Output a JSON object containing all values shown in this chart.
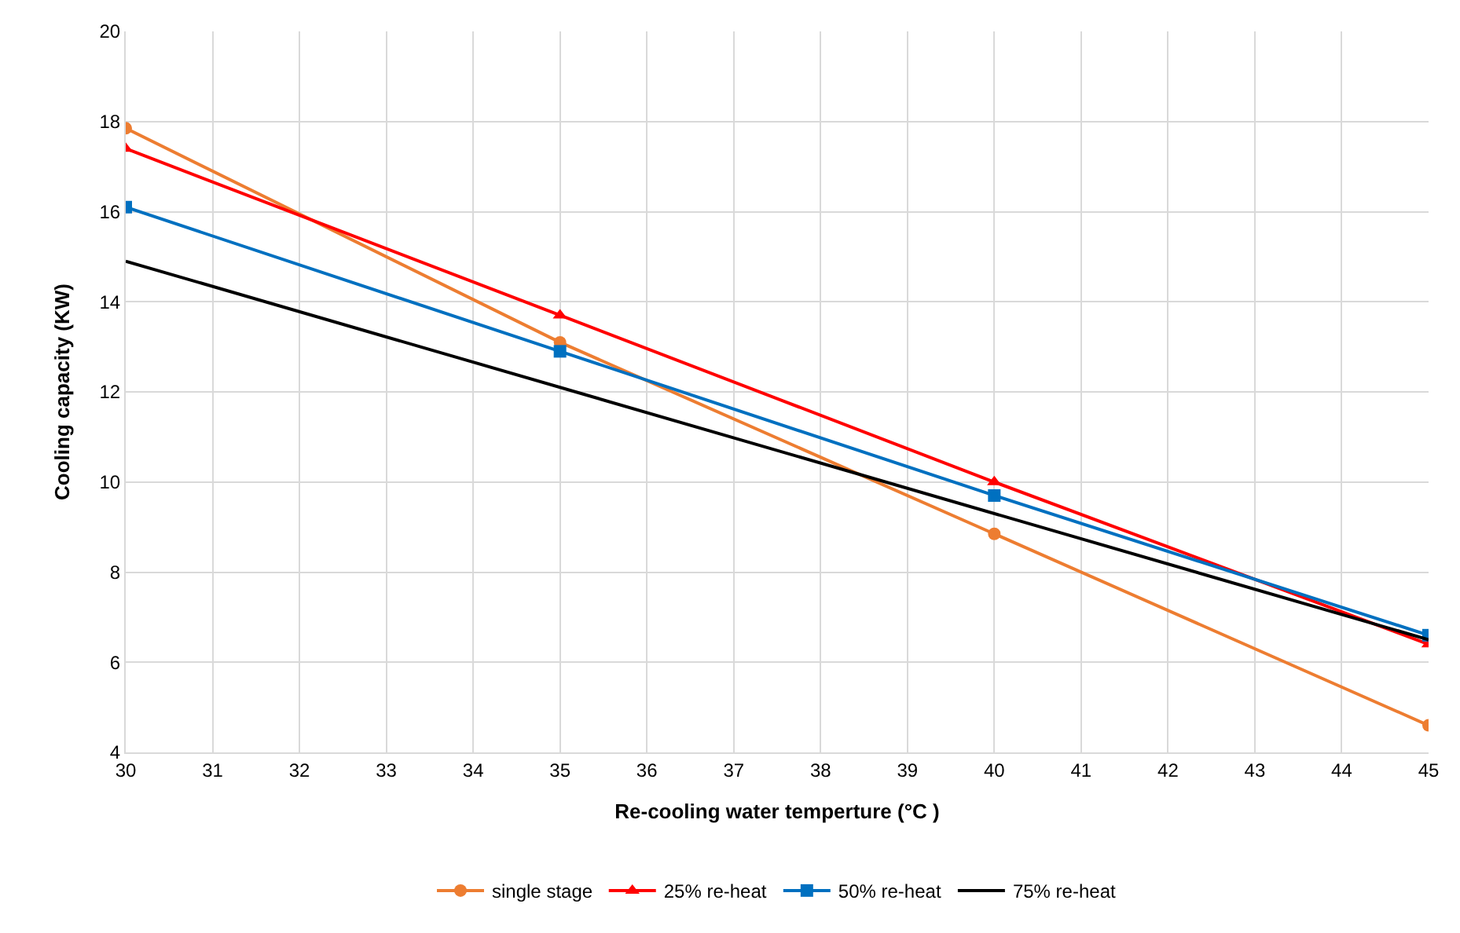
{
  "chart_data": {
    "type": "line",
    "xlabel": "Re-cooling water temperture (°C )",
    "ylabel": "Cooling capacity (KW)",
    "x": [
      30,
      35,
      40,
      45
    ],
    "series": [
      {
        "name": "single stage",
        "color": "#ed7d31",
        "marker": "circle",
        "values": [
          17.85,
          13.1,
          8.85,
          4.6
        ]
      },
      {
        "name": "25% re-heat",
        "color": "#ff0000",
        "marker": "triangle",
        "values": [
          17.4,
          13.7,
          10.0,
          6.4
        ]
      },
      {
        "name": "50% re-heat",
        "color": "#0070c0",
        "marker": "square",
        "values": [
          16.1,
          12.9,
          9.7,
          6.6
        ]
      },
      {
        "name": "75% re-heat",
        "color": "#000000",
        "marker": "none",
        "x": [
          30,
          45
        ],
        "values": [
          14.9,
          6.5
        ]
      }
    ],
    "xlim": [
      30,
      45
    ],
    "xticks": [
      30,
      31,
      32,
      33,
      34,
      35,
      36,
      37,
      38,
      39,
      40,
      41,
      42,
      43,
      44,
      45
    ],
    "ylim": [
      4,
      20
    ],
    "yticks": [
      4,
      6,
      8,
      10,
      12,
      14,
      16,
      18,
      20
    ],
    "grid": true,
    "legend": "bottom",
    "line_style": "solid"
  }
}
